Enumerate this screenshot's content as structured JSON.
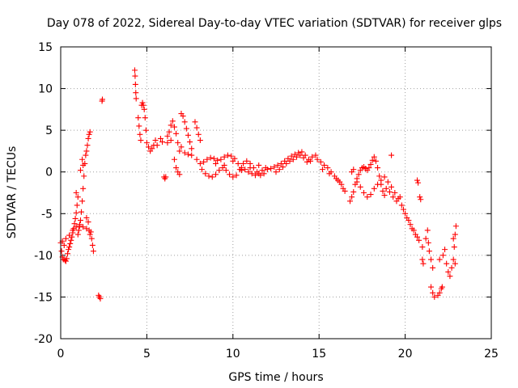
{
  "chart_data": {
    "type": "scatter",
    "title": "Day 078 of 2022, Sidereal Day-to-day VTEC variation (SDTVAR) for receiver glps",
    "xlabel": "GPS time / hours",
    "ylabel": "SDTVAR / TECUs",
    "xlim": [
      0,
      25
    ],
    "ylim": [
      -20,
      15
    ],
    "xticks": [
      0,
      5,
      10,
      15,
      20,
      25
    ],
    "xtick_labels": [
      "0",
      "5",
      "10",
      "15",
      "20",
      "25"
    ],
    "yticks": [
      -20,
      -15,
      -10,
      -5,
      0,
      5,
      10,
      15
    ],
    "ytick_labels": [
      "-20",
      "-15",
      "-10",
      "-5",
      "0",
      "5",
      "10",
      "15"
    ],
    "grid": true,
    "marker": "+",
    "color": "#ff0000",
    "series": [
      {
        "name": "SDTVAR",
        "points": [
          [
            0.0,
            -8.5
          ],
          [
            0.05,
            -9.5
          ],
          [
            0.1,
            -10.2
          ],
          [
            0.15,
            -10.5
          ],
          [
            0.2,
            -8.8
          ],
          [
            0.25,
            -10.6
          ],
          [
            0.3,
            -10.7
          ],
          [
            0.35,
            -10.4
          ],
          [
            0.4,
            -9.8
          ],
          [
            0.45,
            -9.3
          ],
          [
            0.5,
            -9.0
          ],
          [
            0.55,
            -8.6
          ],
          [
            0.6,
            -8.2
          ],
          [
            0.65,
            -7.8
          ],
          [
            0.7,
            -7.3
          ],
          [
            0.75,
            -6.8
          ],
          [
            0.8,
            -6.2
          ],
          [
            0.85,
            -5.6
          ],
          [
            0.9,
            -4.9
          ],
          [
            0.95,
            -4.0
          ],
          [
            1.0,
            -3.0
          ],
          [
            0.9,
            -2.5
          ],
          [
            1.0,
            -7.5
          ],
          [
            1.05,
            -7.0
          ],
          [
            1.1,
            -6.5
          ],
          [
            1.15,
            -5.8
          ],
          [
            1.2,
            -4.8
          ],
          [
            1.25,
            -3.5
          ],
          [
            1.3,
            -2.0
          ],
          [
            1.35,
            -0.5
          ],
          [
            1.4,
            1.0
          ],
          [
            1.45,
            2.0
          ],
          [
            1.5,
            2.5
          ],
          [
            1.55,
            3.2
          ],
          [
            1.6,
            4.0
          ],
          [
            1.65,
            4.5
          ],
          [
            1.7,
            4.8
          ],
          [
            1.25,
            1.5
          ],
          [
            1.3,
            0.8
          ],
          [
            1.15,
            0.2
          ],
          [
            0.1,
            -8.3
          ],
          [
            0.3,
            -8.0
          ],
          [
            0.5,
            -7.6
          ],
          [
            0.7,
            -7.0
          ],
          [
            0.9,
            -6.6
          ],
          [
            1.1,
            -6.3
          ],
          [
            1.3,
            -6.6
          ],
          [
            1.5,
            -6.8
          ],
          [
            1.7,
            -7.5
          ],
          [
            1.8,
            -8.0
          ],
          [
            1.85,
            -8.8
          ],
          [
            1.9,
            -9.5
          ],
          [
            1.6,
            -6.0
          ],
          [
            1.5,
            -5.5
          ],
          [
            1.65,
            -7.0
          ],
          [
            1.75,
            -7.2
          ],
          [
            2.2,
            -14.8
          ],
          [
            2.25,
            -15.0
          ],
          [
            2.3,
            -15.2
          ],
          [
            2.4,
            8.5
          ],
          [
            2.42,
            8.7
          ],
          [
            4.3,
            12.2
          ],
          [
            4.32,
            11.5
          ],
          [
            4.34,
            10.5
          ],
          [
            4.36,
            9.5
          ],
          [
            4.38,
            8.8
          ],
          [
            4.5,
            6.5
          ],
          [
            4.55,
            5.5
          ],
          [
            4.6,
            4.5
          ],
          [
            4.65,
            3.8
          ],
          [
            4.7,
            8.0
          ],
          [
            4.75,
            8.3
          ],
          [
            4.8,
            8.0
          ],
          [
            4.85,
            7.5
          ],
          [
            4.9,
            6.5
          ],
          [
            4.95,
            5.0
          ],
          [
            5.0,
            3.5
          ],
          [
            5.1,
            3.0
          ],
          [
            5.2,
            2.5
          ],
          [
            5.3,
            2.8
          ],
          [
            5.4,
            3.2
          ],
          [
            5.5,
            3.8
          ],
          [
            5.6,
            3.2
          ],
          [
            5.8,
            4.0
          ],
          [
            5.9,
            3.6
          ],
          [
            6.0,
            -0.6
          ],
          [
            6.05,
            -0.8
          ],
          [
            6.1,
            -0.6
          ],
          [
            6.2,
            4.3
          ],
          [
            6.3,
            4.8
          ],
          [
            6.4,
            5.6
          ],
          [
            6.5,
            6.1
          ],
          [
            6.6,
            5.4
          ],
          [
            6.7,
            4.6
          ],
          [
            6.8,
            3.5
          ],
          [
            6.9,
            2.5
          ],
          [
            6.2,
            3.5
          ],
          [
            6.4,
            3.8
          ],
          [
            6.6,
            1.5
          ],
          [
            6.7,
            0.5
          ],
          [
            6.8,
            0.0
          ],
          [
            6.9,
            -0.3
          ],
          [
            7.0,
            7.0
          ],
          [
            7.1,
            6.7
          ],
          [
            7.2,
            6.0
          ],
          [
            7.3,
            5.2
          ],
          [
            7.4,
            4.4
          ],
          [
            7.5,
            3.6
          ],
          [
            7.6,
            2.8
          ],
          [
            7.0,
            3.0
          ],
          [
            7.2,
            2.3
          ],
          [
            7.4,
            2.1
          ],
          [
            7.6,
            2.0
          ],
          [
            7.8,
            6.0
          ],
          [
            7.9,
            5.3
          ],
          [
            8.0,
            4.5
          ],
          [
            8.1,
            3.8
          ],
          [
            7.9,
            1.5
          ],
          [
            8.1,
            1.0
          ],
          [
            8.3,
            1.2
          ],
          [
            8.5,
            1.5
          ],
          [
            8.7,
            1.7
          ],
          [
            8.9,
            1.6
          ],
          [
            9.1,
            1.4
          ],
          [
            9.3,
            1.5
          ],
          [
            9.5,
            1.8
          ],
          [
            9.7,
            2.0
          ],
          [
            9.9,
            1.9
          ],
          [
            10.1,
            1.6
          ],
          [
            10.3,
            1.0
          ],
          [
            10.5,
            0.5
          ],
          [
            10.7,
            0.3
          ],
          [
            10.9,
            0.0
          ],
          [
            11.1,
            -0.2
          ],
          [
            11.3,
            -0.4
          ],
          [
            11.5,
            -0.2
          ],
          [
            11.7,
            0.2
          ],
          [
            11.9,
            0.5
          ],
          [
            8.2,
            0.3
          ],
          [
            8.4,
            -0.2
          ],
          [
            8.6,
            -0.5
          ],
          [
            8.8,
            -0.6
          ],
          [
            9.0,
            -0.3
          ],
          [
            9.2,
            0.2
          ],
          [
            9.4,
            0.5
          ],
          [
            9.6,
            0.2
          ],
          [
            9.8,
            -0.3
          ],
          [
            10.0,
            -0.6
          ],
          [
            10.2,
            -0.4
          ],
          [
            10.4,
            0.3
          ],
          [
            10.6,
            1.0
          ],
          [
            10.8,
            1.3
          ],
          [
            11.0,
            1.0
          ],
          [
            11.2,
            0.5
          ],
          [
            11.4,
            0.0
          ],
          [
            11.6,
            -0.4
          ],
          [
            11.8,
            -0.2
          ],
          [
            12.0,
            0.3
          ],
          [
            9.0,
            1.0
          ],
          [
            9.5,
            0.8
          ],
          [
            10.0,
            1.3
          ],
          [
            10.5,
            0.2
          ],
          [
            11.0,
            0.5
          ],
          [
            11.5,
            0.8
          ],
          [
            12.2,
            0.4
          ],
          [
            12.4,
            0.6
          ],
          [
            12.6,
            0.8
          ],
          [
            12.8,
            1.0
          ],
          [
            13.0,
            1.3
          ],
          [
            13.2,
            1.6
          ],
          [
            13.4,
            1.9
          ],
          [
            13.6,
            2.1
          ],
          [
            13.8,
            2.3
          ],
          [
            14.0,
            2.4
          ],
          [
            14.2,
            2.0
          ],
          [
            14.4,
            1.5
          ],
          [
            14.6,
            1.8
          ],
          [
            14.8,
            2.0
          ],
          [
            12.5,
            0.0
          ],
          [
            12.7,
            0.3
          ],
          [
            12.9,
            0.6
          ],
          [
            13.1,
            1.0
          ],
          [
            13.3,
            1.3
          ],
          [
            13.5,
            1.5
          ],
          [
            13.7,
            1.8
          ],
          [
            13.9,
            2.0
          ],
          [
            14.1,
            1.7
          ],
          [
            14.3,
            1.2
          ],
          [
            14.5,
            1.3
          ],
          [
            14.9,
            1.5
          ],
          [
            15.1,
            1.2
          ],
          [
            15.3,
            0.8
          ],
          [
            15.5,
            0.5
          ],
          [
            15.7,
            0.0
          ],
          [
            15.9,
            -0.5
          ],
          [
            16.1,
            -1.0
          ],
          [
            16.3,
            -1.5
          ],
          [
            16.4,
            -2.0
          ],
          [
            16.5,
            -2.3
          ],
          [
            15.2,
            0.3
          ],
          [
            15.6,
            -0.2
          ],
          [
            16.0,
            -0.8
          ],
          [
            16.2,
            -1.2
          ],
          [
            16.8,
            -3.5
          ],
          [
            16.9,
            -3.0
          ],
          [
            17.0,
            -2.4
          ],
          [
            17.1,
            -1.5
          ],
          [
            17.2,
            -0.8
          ],
          [
            17.3,
            -0.3
          ],
          [
            17.4,
            0.2
          ],
          [
            17.5,
            0.5
          ],
          [
            17.6,
            0.6
          ],
          [
            17.7,
            0.4
          ],
          [
            17.8,
            0.2
          ],
          [
            17.9,
            0.5
          ],
          [
            18.0,
            0.9
          ],
          [
            18.1,
            1.4
          ],
          [
            18.2,
            1.8
          ],
          [
            18.3,
            1.3
          ],
          [
            18.4,
            0.5
          ],
          [
            18.5,
            -0.5
          ],
          [
            18.6,
            -1.5
          ],
          [
            18.7,
            -2.3
          ],
          [
            18.8,
            -2.8
          ],
          [
            16.9,
            0.0
          ],
          [
            17.0,
            0.3
          ],
          [
            17.2,
            -1.2
          ],
          [
            17.4,
            -1.8
          ],
          [
            17.6,
            -2.5
          ],
          [
            17.8,
            -3.0
          ],
          [
            18.0,
            -2.7
          ],
          [
            18.2,
            -2.0
          ],
          [
            18.4,
            -1.5
          ],
          [
            18.6,
            -1.0
          ],
          [
            18.8,
            -0.6
          ],
          [
            19.0,
            -1.2
          ],
          [
            19.2,
            -1.8
          ],
          [
            19.4,
            -2.5
          ],
          [
            19.6,
            -3.2
          ],
          [
            19.8,
            -4.0
          ],
          [
            20.0,
            -5.0
          ],
          [
            20.2,
            -5.8
          ],
          [
            20.4,
            -6.8
          ],
          [
            20.6,
            -7.5
          ],
          [
            20.8,
            -8.2
          ],
          [
            21.0,
            -9.0
          ],
          [
            18.9,
            -2.0
          ],
          [
            19.1,
            -2.4
          ],
          [
            19.3,
            -3.0
          ],
          [
            19.5,
            -3.5
          ],
          [
            19.7,
            -3.0
          ],
          [
            19.9,
            -4.5
          ],
          [
            20.1,
            -5.5
          ],
          [
            20.3,
            -6.3
          ],
          [
            20.5,
            -7.0
          ],
          [
            20.7,
            -7.8
          ],
          [
            19.2,
            2.0
          ],
          [
            20.7,
            -1.0
          ],
          [
            20.75,
            -1.3
          ],
          [
            20.85,
            -3.0
          ],
          [
            20.9,
            -3.3
          ],
          [
            21.0,
            -10.5
          ],
          [
            21.05,
            -11.0
          ],
          [
            21.2,
            -8.0
          ],
          [
            21.3,
            -7.0
          ],
          [
            21.35,
            -8.5
          ],
          [
            21.4,
            -9.5
          ],
          [
            21.5,
            -10.5
          ],
          [
            21.6,
            -11.5
          ],
          [
            21.5,
            -13.8
          ],
          [
            21.6,
            -14.5
          ],
          [
            21.7,
            -15.0
          ],
          [
            21.9,
            -14.8
          ],
          [
            22.0,
            -14.5
          ],
          [
            22.1,
            -14.0
          ],
          [
            22.15,
            -13.8
          ],
          [
            22.0,
            -10.5
          ],
          [
            22.2,
            -10.0
          ],
          [
            22.3,
            -9.3
          ],
          [
            22.4,
            -11.0
          ],
          [
            22.5,
            -12.0
          ],
          [
            22.6,
            -12.5
          ],
          [
            22.7,
            -11.5
          ],
          [
            22.8,
            -10.5
          ],
          [
            22.85,
            -9.0
          ],
          [
            22.9,
            -7.5
          ],
          [
            22.95,
            -6.5
          ],
          [
            22.8,
            -8.0
          ],
          [
            22.9,
            -11.0
          ]
        ]
      }
    ]
  }
}
